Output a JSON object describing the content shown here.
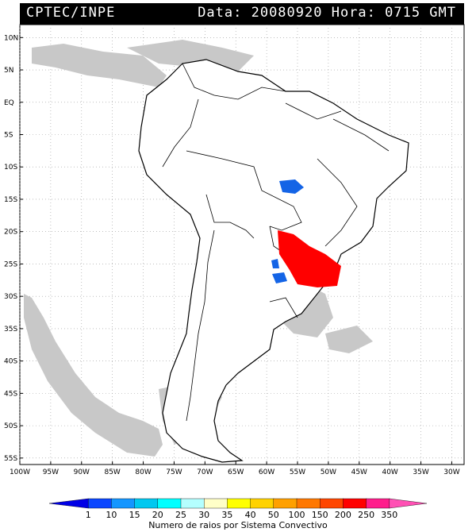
{
  "header": {
    "left": "CPTEC/INPE",
    "right": "Data: 20080920 Hora: 0715 GMT"
  },
  "map": {
    "lat_ticks": [
      "10N",
      "5N",
      "EQ",
      "5S",
      "10S",
      "15S",
      "20S",
      "25S",
      "30S",
      "35S",
      "40S",
      "45S",
      "50S",
      "55S"
    ],
    "lon_ticks": [
      "100W",
      "95W",
      "90W",
      "85W",
      "80W",
      "75W",
      "70W",
      "65W",
      "60W",
      "55W",
      "50W",
      "45W",
      "40W",
      "35W",
      "30W"
    ],
    "extent": {
      "lon_min": -100,
      "lon_max": -28,
      "lat_max": 12,
      "lat_min": -56
    },
    "features": {
      "cloud_color": "#c8c8c8",
      "red_cluster_color": "#ff0000",
      "blue_cluster_color": "#1464e6"
    }
  },
  "legend": {
    "labels": [
      "1",
      "10",
      "15",
      "20",
      "25",
      "30",
      "35",
      "40",
      "50",
      "100",
      "150",
      "200",
      "250",
      "350"
    ],
    "colors": [
      "#0000e6",
      "#0a46ff",
      "#1496ff",
      "#00c8f0",
      "#00ffff",
      "#b4ffff",
      "#ffffc8",
      "#ffff00",
      "#ffd200",
      "#ffa000",
      "#ff7800",
      "#ff4600",
      "#ff0000",
      "#ff1e8c",
      "#ff50b4"
    ],
    "title": "Numero de raios por Sistema Convectivo"
  }
}
